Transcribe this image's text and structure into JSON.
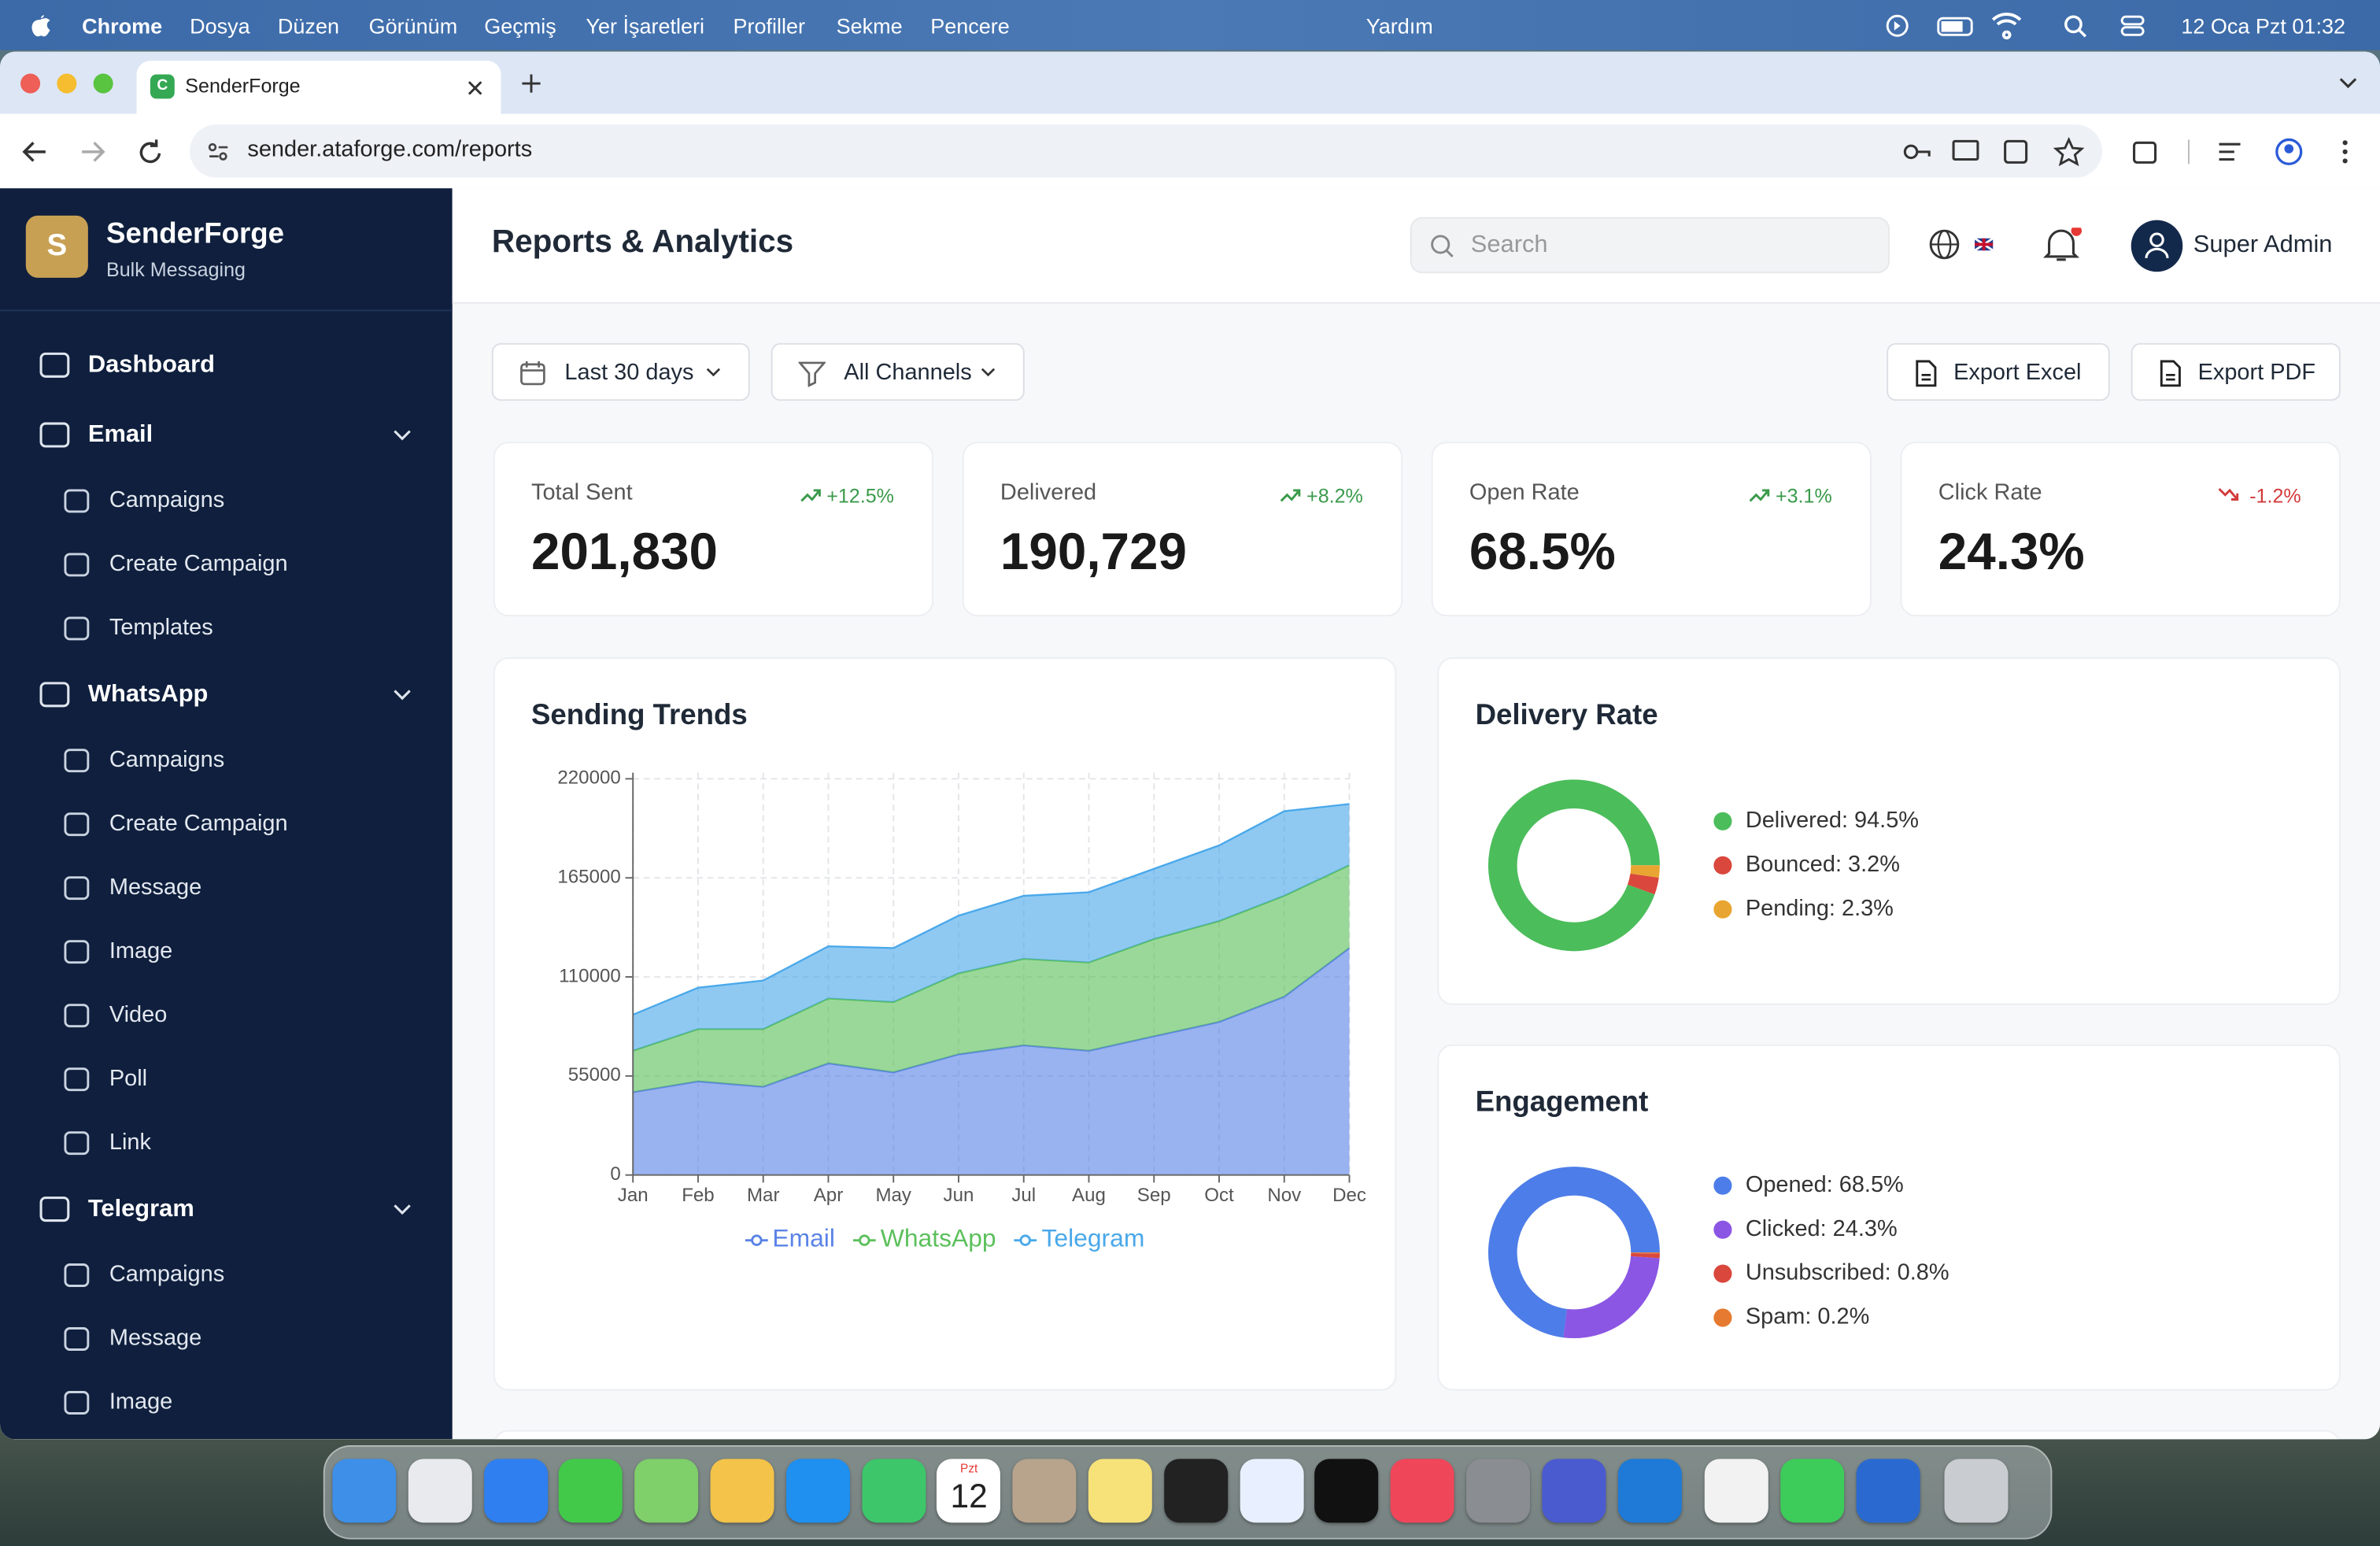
{
  "menu_bar": {
    "app": "Chrome",
    "items": [
      "Dosya",
      "Düzen",
      "Görünüm",
      "Geçmiş",
      "Yer İşaretleri",
      "Profiller",
      "Sekme",
      "Pencere",
      "Yardım"
    ],
    "clock": "12 Oca Pzt 01:32"
  },
  "browser": {
    "tab_title": "SenderForge",
    "favicon_letter": "C",
    "url": "sender.ataforge.com/reports"
  },
  "sidebar": {
    "brand": "SenderForge",
    "brand_initial": "S",
    "tagline": "Bulk Messaging",
    "nav": [
      {
        "label": "Dashboard"
      },
      {
        "label": "Email",
        "children": [
          "Campaigns",
          "Create Campaign",
          "Templates"
        ]
      },
      {
        "label": "WhatsApp",
        "children": [
          "Campaigns",
          "Create Campaign",
          "Message",
          "Image",
          "Video",
          "Poll",
          "Link"
        ]
      },
      {
        "label": "Telegram",
        "children": [
          "Campaigns",
          "Message",
          "Image"
        ]
      }
    ]
  },
  "header": {
    "title": "Reports & Analytics",
    "search_placeholder": "Search",
    "user": "Super Admin"
  },
  "filters": {
    "date_range": "Last 30 days",
    "channel": "All Channels",
    "export_excel": "Export Excel",
    "export_pdf": "Export PDF"
  },
  "stats": [
    {
      "label": "Total Sent",
      "value": "201,830",
      "change": "+12.5%",
      "trend": "up"
    },
    {
      "label": "Delivered",
      "value": "190,729",
      "change": "+8.2%",
      "trend": "up"
    },
    {
      "label": "Open Rate",
      "value": "68.5%",
      "change": "+3.1%",
      "trend": "up"
    },
    {
      "label": "Click Rate",
      "value": "24.3%",
      "change": "-1.2%",
      "trend": "down"
    }
  ],
  "chart_data": [
    {
      "type": "area",
      "stacked": true,
      "title": "Sending Trends",
      "categories": [
        "Jan",
        "Feb",
        "Mar",
        "Apr",
        "May",
        "Jun",
        "Jul",
        "Aug",
        "Sep",
        "Oct",
        "Nov",
        "Dec"
      ],
      "series": [
        {
          "name": "Email",
          "color": "#5b83e6",
          "values": [
            46000,
            52000,
            49000,
            62000,
            57000,
            67000,
            72000,
            69000,
            77000,
            85000,
            99000,
            126000
          ]
        },
        {
          "name": "WhatsApp",
          "color": "#5cc05c",
          "values": [
            23000,
            29000,
            32000,
            36000,
            39000,
            45000,
            48000,
            49000,
            54000,
            56000,
            56000,
            46000
          ]
        },
        {
          "name": "Telegram",
          "color": "#4aa8ea",
          "values": [
            20000,
            23000,
            27000,
            29000,
            30000,
            32000,
            35000,
            39000,
            39000,
            42000,
            47000,
            34000
          ]
        }
      ],
      "ylim": [
        0,
        220000
      ],
      "yticks": [
        0,
        55000,
        110000,
        165000,
        220000
      ],
      "grid": true,
      "legend": "bottom"
    },
    {
      "type": "donut",
      "title": "Delivery Rate",
      "values": [
        94.5,
        3.2,
        2.3
      ],
      "value_labels": [
        "Delivered: 94.5%",
        "Bounced: 3.2%",
        "Pending: 2.3%"
      ],
      "colors": [
        "#4cbd5b",
        "#d9473d",
        "#e9a531"
      ],
      "legend": "right"
    },
    {
      "type": "donut",
      "title": "Engagement",
      "values": [
        68.5,
        24.3,
        0.8,
        0.2
      ],
      "value_labels": [
        "Opened: 68.5%",
        "Clicked: 24.3%",
        "Unsubscribed: 0.8%",
        "Spam: 0.2%"
      ],
      "colors": [
        "#4d7de8",
        "#8b56e3",
        "#d9473d",
        "#e67a30"
      ],
      "legend": "right"
    }
  ],
  "dock": {
    "calendar_day": "Pzt",
    "calendar_date": "12"
  }
}
